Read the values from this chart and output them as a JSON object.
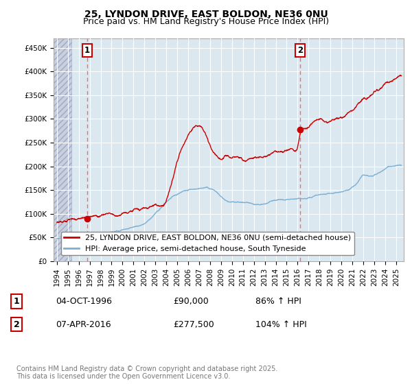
{
  "title1": "25, LYNDON DRIVE, EAST BOLDON, NE36 0NU",
  "title2": "Price paid vs. HM Land Registry's House Price Index (HPI)",
  "ylabel_ticks": [
    "£0",
    "£50K",
    "£100K",
    "£150K",
    "£200K",
    "£250K",
    "£300K",
    "£350K",
    "£400K",
    "£450K"
  ],
  "ytick_vals": [
    0,
    50000,
    100000,
    150000,
    200000,
    250000,
    300000,
    350000,
    400000,
    450000
  ],
  "ylim": [
    0,
    470000
  ],
  "xlim_start": 1993.7,
  "xlim_end": 2025.7,
  "xtick_years": [
    1994,
    1995,
    1996,
    1997,
    1998,
    1999,
    2000,
    2001,
    2002,
    2003,
    2004,
    2005,
    2006,
    2007,
    2008,
    2009,
    2010,
    2011,
    2012,
    2013,
    2014,
    2015,
    2016,
    2017,
    2018,
    2019,
    2020,
    2021,
    2022,
    2023,
    2024,
    2025
  ],
  "sale1_x": 1996.75,
  "sale1_y": 90000,
  "sale1_label": "1",
  "sale2_x": 2016.25,
  "sale2_y": 277500,
  "sale2_label": "2",
  "red_line_color": "#cc0000",
  "blue_line_color": "#7bafd4",
  "sale_dot_color": "#cc0000",
  "vline_color": "#ff6666",
  "grid_color": "#c8d8e8",
  "bg_color": "#dce8f0",
  "hatch_color": "#c0c8d8",
  "legend_label_red": "25, LYNDON DRIVE, EAST BOLDON, NE36 0NU (semi-detached house)",
  "legend_label_blue": "HPI: Average price, semi-detached house, South Tyneside",
  "info1_num": "1",
  "info1_date": "04-OCT-1996",
  "info1_price": "£90,000",
  "info1_hpi": "86% ↑ HPI",
  "info2_num": "2",
  "info2_date": "07-APR-2016",
  "info2_price": "£277,500",
  "info2_hpi": "104% ↑ HPI",
  "footer": "Contains HM Land Registry data © Crown copyright and database right 2025.\nThis data is licensed under the Open Government Licence v3.0.",
  "title_fontsize": 10,
  "subtitle_fontsize": 9,
  "tick_fontsize": 7.5,
  "legend_fontsize": 8,
  "info_fontsize": 9,
  "footer_fontsize": 7
}
